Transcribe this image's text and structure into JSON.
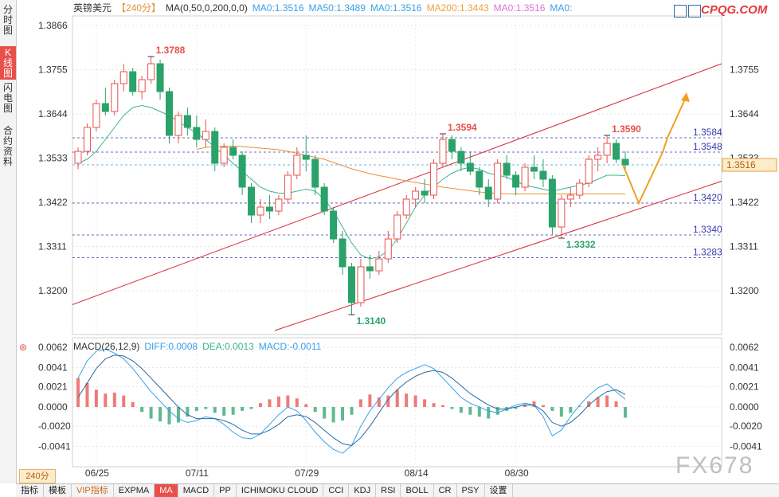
{
  "sidebar": {
    "tabs": [
      {
        "label": "分\n时\n图",
        "active": false
      },
      {
        "label": "K\n线\n图",
        "active": true
      },
      {
        "label": "闪\n电\n图",
        "active": false
      },
      {
        "label": "合\n约\n资\n料",
        "active": false
      }
    ]
  },
  "header": {
    "symbol": "英镑美元",
    "period": "【240分】",
    "ma_settings": "MA(0,50,0,200,0,0)",
    "ma_values": [
      {
        "label": "MA0:1.3516",
        "color": "#3aa0e8"
      },
      {
        "label": "MA50:1.3489",
        "color": "#3aa0e8"
      },
      {
        "label": "MA0:1.3516",
        "color": "#3aa0e8"
      },
      {
        "label": "MA200:1.3443",
        "color": "#f0a040"
      },
      {
        "label": "MA0:1.3516",
        "color": "#e070e0"
      },
      {
        "label": "MA0:",
        "color": "#3aa0e8"
      }
    ]
  },
  "logos": {
    "cpqg": "CPQG.COM",
    "fx678": "FX678"
  },
  "macd": {
    "title": "MACD(26,12,9)",
    "diff": "DIFF:0.0008",
    "dea": "DEA:0.0013",
    "macd": "MACD:-0.0011"
  },
  "period_label": "240分",
  "bottom_bar": [
    "指标",
    "模板",
    "VIP指标",
    "EXPMA",
    "MA",
    "MACD",
    "PP",
    "ICHIMOKU CLOUD",
    "CCI",
    "KDJ",
    "RSI",
    "BOLL",
    "CR",
    "PSY",
    "设置"
  ],
  "colors": {
    "up": "#e8504a",
    "down": "#2aa26a",
    "ma50": "#3db58a",
    "ma200": "#e8903a",
    "forecast": "#f0a020",
    "channel": "#d8243a",
    "level": "#3b3bb0"
  },
  "chart_data": [
    {
      "type": "candlestick",
      "title": "英镑美元【240分】",
      "x_ticks": [
        "06/25",
        "07/11",
        "07/29",
        "08/14",
        "08/30"
      ],
      "y_ticks": [
        "1.3866",
        "1.3755",
        "1.3644",
        "1.3533",
        "1.3422",
        "1.3311",
        "1.3200"
      ],
      "y_ticks_right": [
        "1.3755",
        "1.3644",
        "1.3533",
        "1.3422",
        "1.3311",
        "1.3200"
      ],
      "ylim": [
        1.309,
        1.389
      ],
      "current_price": "1.3516",
      "annotations": [
        {
          "label": "1.3788",
          "value": 1.3788,
          "kind": "high"
        },
        {
          "label": "1.3140",
          "value": 1.314,
          "kind": "low"
        },
        {
          "label": "1.3594",
          "value": 1.3594,
          "kind": "high"
        },
        {
          "label": "1.3332",
          "value": 1.3332,
          "kind": "low"
        },
        {
          "label": "1.3590",
          "value": 1.359,
          "kind": "high"
        }
      ],
      "levels": [
        {
          "label": "1.3584",
          "value": 1.3584
        },
        {
          "label": "1.3548",
          "value": 1.3548
        },
        {
          "label": "1.3420",
          "value": 1.342
        },
        {
          "label": "1.3340",
          "value": 1.334
        },
        {
          "label": "1.3283",
          "value": 1.3283
        }
      ],
      "ma_baseline": 1.3516,
      "candles": [
        [
          1.352,
          1.356,
          1.3505,
          1.355
        ],
        [
          1.355,
          1.362,
          1.354,
          1.361
        ],
        [
          1.361,
          1.368,
          1.36,
          1.367
        ],
        [
          1.367,
          1.371,
          1.364,
          1.365
        ],
        [
          1.365,
          1.373,
          1.364,
          1.372
        ],
        [
          1.372,
          1.377,
          1.37,
          1.375
        ],
        [
          1.375,
          1.376,
          1.369,
          1.37
        ],
        [
          1.37,
          1.374,
          1.368,
          1.373
        ],
        [
          1.373,
          1.3788,
          1.372,
          1.377
        ],
        [
          1.377,
          1.378,
          1.368,
          1.37
        ],
        [
          1.37,
          1.371,
          1.357,
          1.359
        ],
        [
          1.359,
          1.365,
          1.357,
          1.364
        ],
        [
          1.364,
          1.366,
          1.359,
          1.361
        ],
        [
          1.361,
          1.364,
          1.356,
          1.358
        ],
        [
          1.358,
          1.363,
          1.356,
          1.36
        ],
        [
          1.36,
          1.361,
          1.35,
          1.352
        ],
        [
          1.352,
          1.357,
          1.351,
          1.356
        ],
        [
          1.356,
          1.358,
          1.353,
          1.354
        ],
        [
          1.354,
          1.355,
          1.344,
          1.346
        ],
        [
          1.346,
          1.347,
          1.337,
          1.339
        ],
        [
          1.339,
          1.343,
          1.337,
          1.341
        ],
        [
          1.341,
          1.344,
          1.338,
          1.34
        ],
        [
          1.34,
          1.344,
          1.339,
          1.343
        ],
        [
          1.343,
          1.35,
          1.342,
          1.349
        ],
        [
          1.349,
          1.356,
          1.348,
          1.354
        ],
        [
          1.354,
          1.359,
          1.35,
          1.353
        ],
        [
          1.353,
          1.354,
          1.344,
          1.346
        ],
        [
          1.346,
          1.347,
          1.339,
          1.34
        ],
        [
          1.34,
          1.341,
          1.332,
          1.333
        ],
        [
          1.333,
          1.335,
          1.324,
          1.326
        ],
        [
          1.326,
          1.327,
          1.314,
          1.317
        ],
        [
          1.317,
          1.328,
          1.316,
          1.326
        ],
        [
          1.326,
          1.329,
          1.323,
          1.325
        ],
        [
          1.325,
          1.33,
          1.324,
          1.328
        ],
        [
          1.328,
          1.335,
          1.327,
          1.333
        ],
        [
          1.333,
          1.34,
          1.332,
          1.339
        ],
        [
          1.339,
          1.344,
          1.338,
          1.343
        ],
        [
          1.343,
          1.346,
          1.341,
          1.345
        ],
        [
          1.345,
          1.348,
          1.342,
          1.344
        ],
        [
          1.344,
          1.353,
          1.343,
          1.352
        ],
        [
          1.352,
          1.3594,
          1.351,
          1.358
        ],
        [
          1.358,
          1.359,
          1.353,
          1.355
        ],
        [
          1.355,
          1.356,
          1.35,
          1.352
        ],
        [
          1.352,
          1.355,
          1.349,
          1.35
        ],
        [
          1.35,
          1.351,
          1.344,
          1.346
        ],
        [
          1.346,
          1.348,
          1.341,
          1.343
        ],
        [
          1.343,
          1.353,
          1.342,
          1.352
        ],
        [
          1.352,
          1.354,
          1.348,
          1.349
        ],
        [
          1.349,
          1.35,
          1.344,
          1.346
        ],
        [
          1.346,
          1.352,
          1.345,
          1.351
        ],
        [
          1.351,
          1.354,
          1.348,
          1.35
        ],
        [
          1.35,
          1.353,
          1.346,
          1.348
        ],
        [
          1.348,
          1.349,
          1.334,
          1.336
        ],
        [
          1.336,
          1.344,
          1.3332,
          1.343
        ],
        [
          1.343,
          1.346,
          1.341,
          1.344
        ],
        [
          1.344,
          1.348,
          1.343,
          1.347
        ],
        [
          1.347,
          1.354,
          1.346,
          1.353
        ],
        [
          1.353,
          1.356,
          1.35,
          1.354
        ],
        [
          1.354,
          1.359,
          1.352,
          1.357
        ],
        [
          1.357,
          1.358,
          1.352,
          1.353
        ],
        [
          1.353,
          1.355,
          1.35,
          1.3516
        ]
      ],
      "ma50": [
        1.352,
        1.353,
        1.355,
        1.358,
        1.361,
        1.364,
        1.366,
        1.3665,
        1.366,
        1.365,
        1.364,
        1.3625,
        1.361,
        1.3595,
        1.358,
        1.356,
        1.354,
        1.352,
        1.35,
        1.348,
        1.346,
        1.345,
        1.3445,
        1.3445,
        1.345,
        1.3455,
        1.345,
        1.343,
        1.34,
        1.336,
        1.332,
        1.329,
        1.328,
        1.3285,
        1.33,
        1.333,
        1.337,
        1.341,
        1.344,
        1.346,
        1.348,
        1.3495,
        1.3505,
        1.351,
        1.3505,
        1.3495,
        1.349,
        1.3485,
        1.3475,
        1.3465,
        1.346,
        1.3455,
        1.345,
        1.3455,
        1.346,
        1.3465,
        1.347,
        1.348,
        1.349,
        1.349,
        1.3489
      ],
      "ma200": [
        null,
        null,
        null,
        null,
        null,
        null,
        null,
        null,
        null,
        null,
        null,
        null,
        null,
        1.3555,
        1.356,
        1.3562,
        1.3563,
        1.3563,
        1.3562,
        1.356,
        1.3558,
        1.3556,
        1.3554,
        1.355,
        1.3545,
        1.354,
        1.3535,
        1.353,
        1.3522,
        1.3514,
        1.3506,
        1.35,
        1.3494,
        1.3489,
        1.3485,
        1.348,
        1.3476,
        1.3472,
        1.3468,
        1.3464,
        1.346,
        1.3457,
        1.3454,
        1.3451,
        1.3448,
        1.3446,
        1.3444,
        1.3443,
        1.3443,
        1.3443,
        1.3443,
        1.3443,
        1.3443,
        1.3443,
        1.3443,
        1.3443,
        1.3443,
        1.3443,
        1.3443,
        1.3443,
        1.3443
      ],
      "forecast_path": [
        1.3516,
        1.342,
        1.3548,
        1.3584,
        1.369
      ]
    },
    {
      "type": "bar+line",
      "title": "MACD(26,12,9)",
      "y_ticks": [
        "0.0062",
        "0.0041",
        "0.0021",
        "0.0000",
        "-0.0020",
        "-0.0041"
      ],
      "ylim": [
        -0.0062,
        0.0072
      ],
      "macd_hist": [
        0.003,
        0.0025,
        0.0018,
        0.0014,
        0.0015,
        0.0012,
        0.0005,
        -0.0005,
        -0.0012,
        -0.0015,
        -0.0018,
        -0.0016,
        -0.001,
        -0.0004,
        -0.0002,
        -0.0006,
        -0.0009,
        -0.0008,
        -0.0004,
        -0.0002,
        0.0004,
        0.0008,
        0.0011,
        0.0012,
        0.0009,
        0.0003,
        -0.0005,
        -0.0012,
        -0.0016,
        -0.0014,
        -0.0008,
        0.0008,
        0.0013,
        0.001,
        0.0012,
        0.0018,
        0.0014,
        0.0012,
        0.0008,
        0.0004,
        0.0002,
        -0.0002,
        -0.0006,
        -0.0008,
        -0.001,
        -0.0012,
        -0.0008,
        -0.0004,
        -0.0002,
        0.0003,
        0.0006,
        0.0002,
        -0.0004,
        -0.001,
        -0.0006,
        0.0001,
        0.0006,
        0.001,
        0.0012,
        0.0006,
        -0.0011
      ],
      "diff": [
        0.003,
        0.0048,
        0.0058,
        0.006,
        0.0056,
        0.005,
        0.004,
        0.0028,
        0.0016,
        0.0006,
        -0.0004,
        -0.0012,
        -0.0016,
        -0.0014,
        -0.001,
        -0.0012,
        -0.0018,
        -0.0026,
        -0.0032,
        -0.0033,
        -0.0028,
        -0.0018,
        -0.0008,
        0.0,
        -0.0004,
        -0.0014,
        -0.0026,
        -0.0036,
        -0.0044,
        -0.0048,
        -0.004,
        -0.002,
        -0.0004,
        0.0008,
        0.002,
        0.003,
        0.0036,
        0.004,
        0.0044,
        0.004,
        0.003,
        0.002,
        0.001,
        0.0004,
        0.0,
        -0.0004,
        -0.0006,
        -0.0002,
        0.0002,
        0.0004,
        0.0002,
        -0.001,
        -0.003,
        -0.0024,
        -0.001,
        0.0002,
        0.0012,
        0.002,
        0.0024,
        0.0016,
        0.0008
      ],
      "dea": [
        0.001,
        0.0025,
        0.004,
        0.005,
        0.0054,
        0.0053,
        0.0048,
        0.004,
        0.003,
        0.002,
        0.001,
        0.0,
        -0.0008,
        -0.0012,
        -0.0012,
        -0.0012,
        -0.0014,
        -0.0018,
        -0.0024,
        -0.0028,
        -0.0028,
        -0.0024,
        -0.0018,
        -0.001,
        -0.0008,
        -0.001,
        -0.0016,
        -0.0024,
        -0.0032,
        -0.0038,
        -0.004,
        -0.0032,
        -0.002,
        -0.0006,
        0.0008,
        0.0018,
        0.0026,
        0.0032,
        0.0036,
        0.0038,
        0.0036,
        0.003,
        0.0022,
        0.0014,
        0.0008,
        0.0002,
        -0.0002,
        -0.0002,
        0.0,
        0.0002,
        0.0002,
        -0.0004,
        -0.0016,
        -0.002,
        -0.0016,
        -0.0008,
        0.0002,
        0.001,
        0.0016,
        0.0018,
        0.0013
      ]
    }
  ]
}
